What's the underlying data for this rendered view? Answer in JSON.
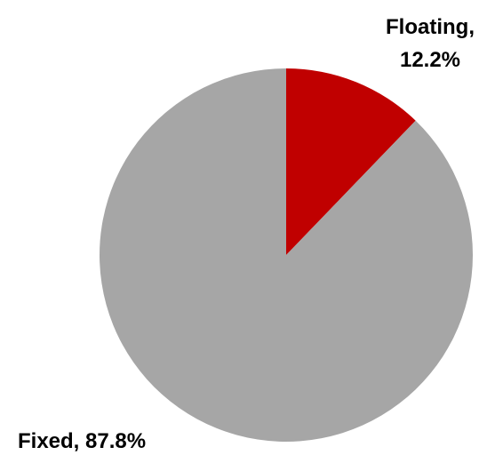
{
  "chart_data": {
    "type": "pie",
    "slices": [
      {
        "label": "Floating",
        "value": 12.2,
        "color": "#C00000",
        "label_line1": "Floating,",
        "label_line2": "12.2%"
      },
      {
        "label": "Fixed",
        "value": 87.8,
        "color": "#A6A6A6",
        "label_line1": "Fixed, 87.8%"
      }
    ],
    "start_angle_deg": 0,
    "direction": "clockwise",
    "legend": "none"
  }
}
